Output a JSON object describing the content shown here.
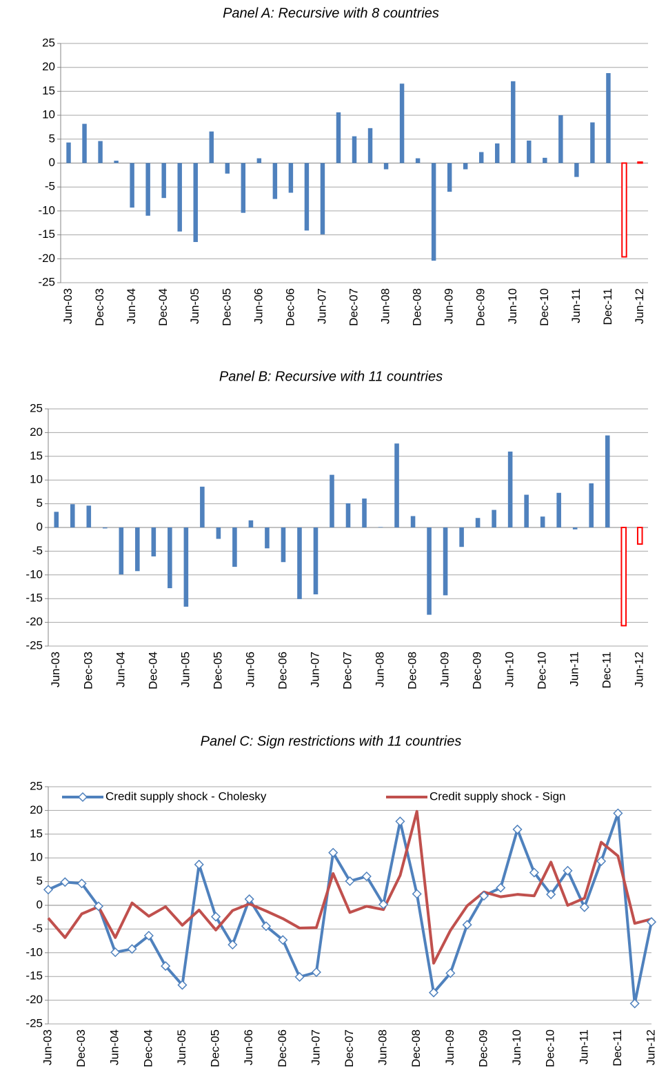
{
  "chart_data": [
    {
      "type": "bar",
      "title": "Panel A: Recursive with 8 countries",
      "categories": [
        "Jun-03",
        null,
        "Dec-03",
        null,
        "Jun-04",
        null,
        "Dec-04",
        null,
        "Jun-05",
        null,
        "Dec-05",
        null,
        "Jun-06",
        null,
        "Dec-06",
        null,
        "Jun-07",
        null,
        "Dec-07",
        null,
        "Jun-08",
        null,
        "Dec-08",
        null,
        "Jun-09",
        null,
        "Dec-09",
        null,
        "Jun-10",
        null,
        "Dec-10",
        null,
        "Jun-11",
        null,
        "Dec-11",
        null,
        "Jun-12"
      ],
      "values": [
        4.3,
        8.2,
        4.6,
        0.5,
        -9.3,
        -11,
        -7.3,
        -14.3,
        -16.5,
        6.6,
        -2.2,
        -10.4,
        1.0,
        -7.5,
        -6.2,
        -14.1,
        -14.9,
        10.6,
        5.6,
        7.3,
        -1.3,
        16.6,
        1.0,
        -20.4,
        -6.0,
        -1.3,
        2.3,
        4.1,
        17.1,
        4.7,
        1.1,
        10.0,
        -2.9,
        8.5,
        18.8,
        -19.6,
        0.2
      ],
      "colors": [
        "#4f81bd",
        "#4f81bd",
        "#4f81bd",
        "#4f81bd",
        "#4f81bd",
        "#4f81bd",
        "#4f81bd",
        "#4f81bd",
        "#4f81bd",
        "#4f81bd",
        "#4f81bd",
        "#4f81bd",
        "#4f81bd",
        "#4f81bd",
        "#4f81bd",
        "#4f81bd",
        "#4f81bd",
        "#4f81bd",
        "#4f81bd",
        "#4f81bd",
        "#4f81bd",
        "#4f81bd",
        "#4f81bd",
        "#4f81bd",
        "#4f81bd",
        "#4f81bd",
        "#4f81bd",
        "#4f81bd",
        "#4f81bd",
        "#4f81bd",
        "#4f81bd",
        "#4f81bd",
        "#4f81bd",
        "#4f81bd",
        "#4f81bd",
        "#ff0000",
        "#ff0000"
      ],
      "ylim": [
        -25,
        25
      ],
      "yticks": [
        -25,
        -20,
        -15,
        -10,
        -5,
        0,
        5,
        10,
        15,
        20,
        25
      ],
      "grid": true
    },
    {
      "type": "bar",
      "title": "Panel B: Recursive with 11 countries",
      "categories": [
        "Jun-03",
        null,
        "Dec-03",
        null,
        "Jun-04",
        null,
        "Dec-04",
        null,
        "Jun-05",
        null,
        "Dec-05",
        null,
        "Jun-06",
        null,
        "Dec-06",
        null,
        "Jun-07",
        null,
        "Dec-07",
        null,
        "Jun-08",
        null,
        "Dec-08",
        null,
        "Jun-09",
        null,
        "Dec-09",
        null,
        "Jun-10",
        null,
        "Dec-10",
        null,
        "Jun-11",
        null,
        "Dec-11",
        null,
        "Jun-12"
      ],
      "values": [
        3.3,
        4.9,
        4.6,
        -0.2,
        -9.9,
        -9.2,
        -6.1,
        -12.8,
        -16.7,
        8.6,
        -2.4,
        -8.3,
        1.5,
        -4.4,
        -7.3,
        -15.1,
        -14.1,
        11.1,
        5.1,
        6.1,
        0.1,
        17.7,
        2.4,
        -18.4,
        -14.3,
        -4.1,
        2.0,
        3.7,
        16.0,
        6.9,
        2.3,
        7.3,
        -0.4,
        9.3,
        19.4,
        -20.7,
        -3.5
      ],
      "colors": [
        "#4f81bd",
        "#4f81bd",
        "#4f81bd",
        "#4f81bd",
        "#4f81bd",
        "#4f81bd",
        "#4f81bd",
        "#4f81bd",
        "#4f81bd",
        "#4f81bd",
        "#4f81bd",
        "#4f81bd",
        "#4f81bd",
        "#4f81bd",
        "#4f81bd",
        "#4f81bd",
        "#4f81bd",
        "#4f81bd",
        "#4f81bd",
        "#4f81bd",
        "#4f81bd",
        "#4f81bd",
        "#4f81bd",
        "#4f81bd",
        "#4f81bd",
        "#4f81bd",
        "#4f81bd",
        "#4f81bd",
        "#4f81bd",
        "#4f81bd",
        "#4f81bd",
        "#4f81bd",
        "#4f81bd",
        "#4f81bd",
        "#4f81bd",
        "#ff0000",
        "#ff0000"
      ],
      "ylim": [
        -25,
        25
      ],
      "yticks": [
        -25,
        -20,
        -15,
        -10,
        -5,
        0,
        5,
        10,
        15,
        20,
        25
      ],
      "grid": true
    },
    {
      "type": "line",
      "title": "Panel C: Sign restrictions with 11 countries",
      "categories": [
        "Jun-03",
        null,
        "Dec-03",
        null,
        "Jun-04",
        null,
        "Dec-04",
        null,
        "Jun-05",
        null,
        "Dec-05",
        null,
        "Jun-06",
        null,
        "Dec-06",
        null,
        "Jun-07",
        null,
        "Dec-07",
        null,
        "Jun-08",
        null,
        "Dec-08",
        null,
        "Jun-09",
        null,
        "Dec-09",
        null,
        "Jun-10",
        null,
        "Dec-10",
        null,
        "Jun-11",
        null,
        "Dec-11",
        null,
        "Jun-12"
      ],
      "series": [
        {
          "name": "Credit supply shock - Cholesky",
          "color": "#4f81bd",
          "marker": "diamond",
          "values": [
            3.3,
            4.9,
            4.6,
            -0.2,
            -9.9,
            -9.2,
            -6.4,
            -12.8,
            -16.8,
            8.6,
            -2.4,
            -8.3,
            1.3,
            -4.4,
            -7.3,
            -15.1,
            -14.1,
            11.1,
            5.1,
            6.1,
            0.2,
            17.7,
            2.4,
            -18.4,
            -14.3,
            -4.1,
            2.0,
            3.7,
            16.0,
            6.9,
            2.3,
            7.3,
            -0.4,
            9.3,
            19.4,
            -20.7,
            -3.5
          ]
        },
        {
          "name": "Credit supply shock - Sign",
          "color": "#c0504d",
          "values": [
            -2.7,
            -6.8,
            -1.8,
            -0.3,
            -6.8,
            0.5,
            -2.3,
            -0.3,
            -4.2,
            -1.0,
            -5.2,
            -1.1,
            0.3,
            -1.2,
            -2.8,
            -4.8,
            -4.7,
            6.7,
            -1.5,
            -0.2,
            -0.9,
            6.3,
            19.8,
            -12.2,
            -5.3,
            -0.1,
            2.8,
            1.8,
            2.3,
            2.0,
            9.1,
            0.0,
            1.5,
            13.3,
            10.4,
            -3.8,
            -2.9
          ]
        }
      ],
      "ylim": [
        -25,
        25
      ],
      "yticks": [
        -25,
        -20,
        -15,
        -10,
        -5,
        0,
        5,
        10,
        15,
        20,
        25
      ],
      "grid": true,
      "legend": "top"
    }
  ]
}
